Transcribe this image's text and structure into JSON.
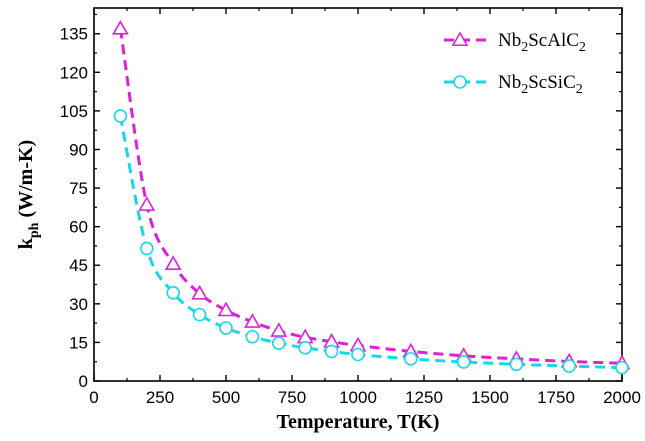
{
  "chart_data": {
    "type": "line",
    "title": "",
    "xlabel": "Temperature, T(K)",
    "ylabel": "k_ph (W/m-K)",
    "ylabel_parts": {
      "main": "k",
      "sub": "ph",
      "unit": " (W/m-K)"
    },
    "xlim": [
      0,
      2000
    ],
    "ylim": [
      0,
      145
    ],
    "xticks": [
      0,
      250,
      500,
      750,
      1000,
      1250,
      1500,
      1750,
      2000
    ],
    "yticks": [
      0,
      15,
      30,
      45,
      60,
      75,
      90,
      105,
      120,
      135
    ],
    "grid": false,
    "legend_position": "top-right",
    "x": [
      100,
      200,
      300,
      400,
      500,
      600,
      700,
      800,
      900,
      1000,
      1200,
      1400,
      1600,
      1800,
      2000
    ],
    "series": [
      {
        "name": "Nb2ScAlC2",
        "label_parts": [
          "Nb",
          "2",
          "ScAlC",
          "2"
        ],
        "color": "#e020d8",
        "marker": "triangle",
        "values": [
          137,
          68.5,
          45.5,
          34,
          27.5,
          23,
          19.5,
          17,
          15.3,
          13.8,
          11.5,
          9.8,
          8.6,
          7.6,
          6.9
        ]
      },
      {
        "name": "Nb2ScSiC2",
        "label_parts": [
          "Nb",
          "2",
          "ScSiC",
          "2"
        ],
        "color": "#18d8e8",
        "marker": "circle",
        "values": [
          103,
          51.5,
          34.3,
          25.8,
          20.6,
          17.2,
          14.7,
          12.9,
          11.5,
          10.3,
          8.6,
          7.4,
          6.5,
          5.8,
          5.2
        ]
      }
    ]
  }
}
